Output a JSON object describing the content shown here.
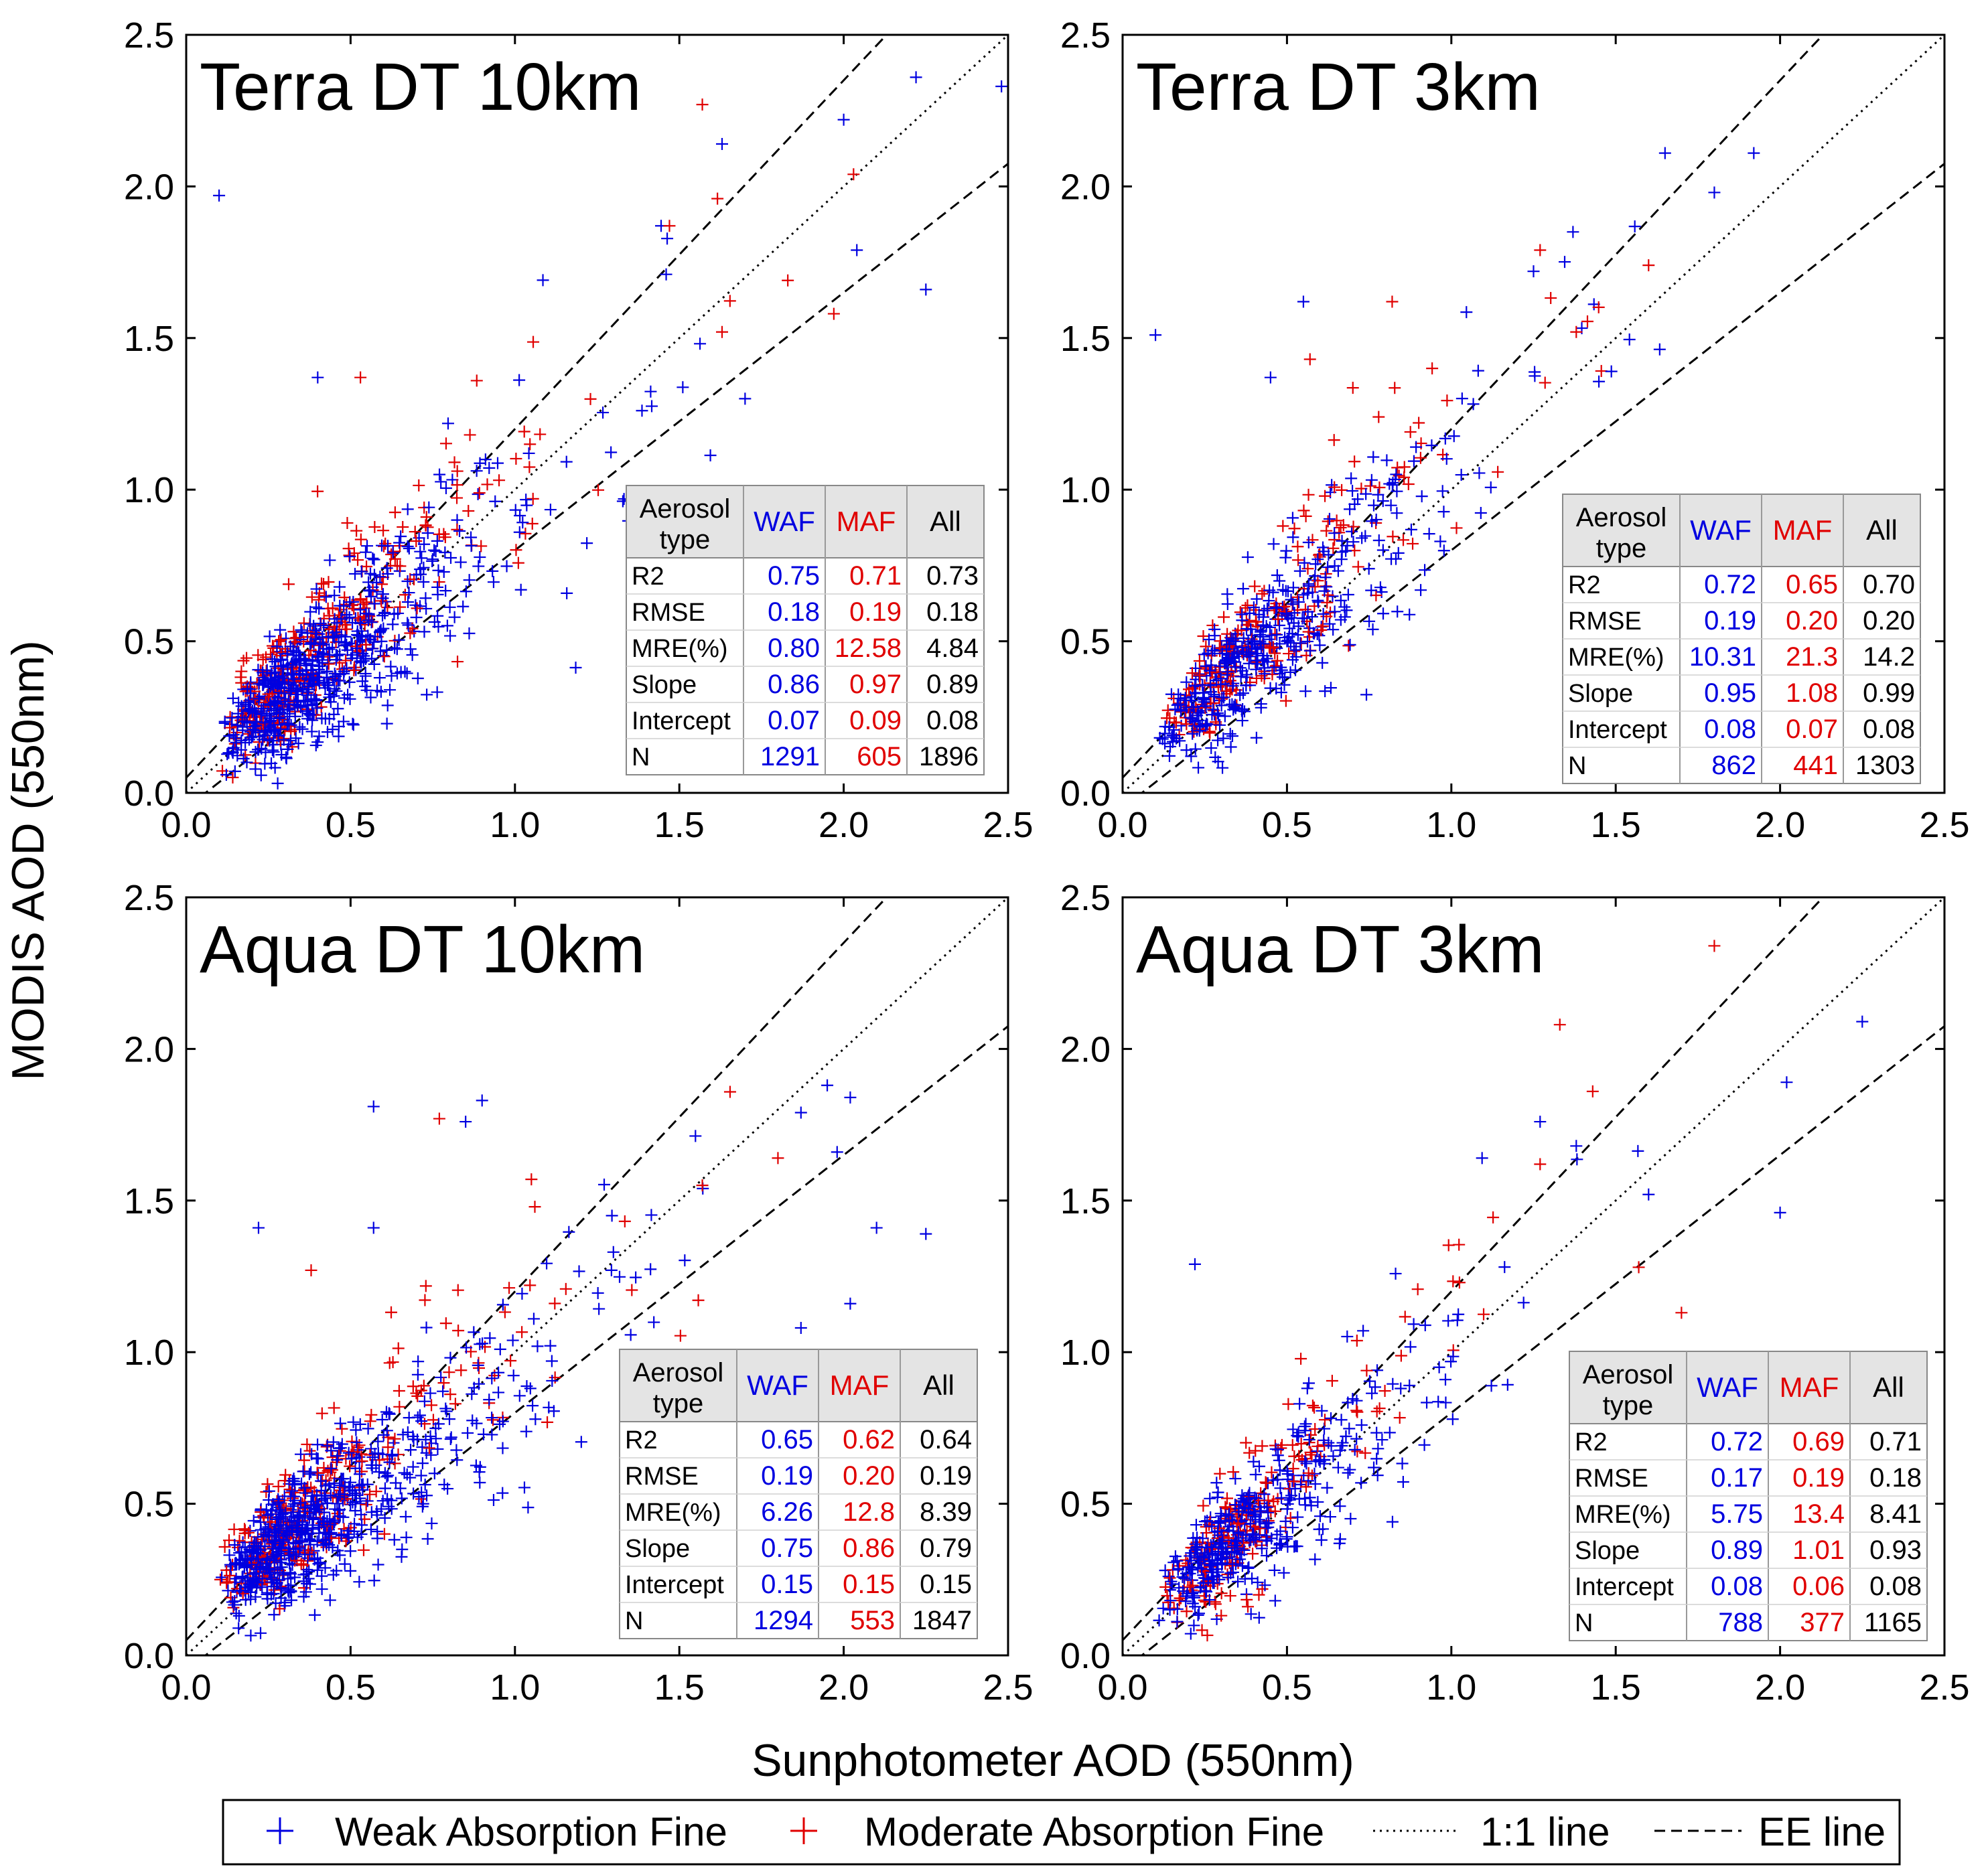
{
  "figure": {
    "ylabel": "MODIS  AOD (550nm)",
    "xlabel": "Sunphotometer AOD (550nm)",
    "legend": [
      {
        "key": "waf",
        "label": "Weak Absorption Fine",
        "marker": "plus",
        "color": "#0000e0"
      },
      {
        "key": "maf",
        "label": "Moderate Absorption Fine",
        "marker": "plus",
        "color": "#e00000"
      },
      {
        "key": "one",
        "label": "1:1 line",
        "marker": "dotted-line",
        "color": "#000000"
      },
      {
        "key": "ee",
        "label": "EE line",
        "marker": "dashed-line",
        "color": "#000000"
      }
    ],
    "colors": {
      "waf": "#0000e0",
      "maf": "#e00000",
      "axis": "#000000",
      "table_header": "#e4e4e4"
    },
    "table_header": [
      "Aerosol type",
      "WAF",
      "MAF",
      "All"
    ]
  },
  "chart_data": [
    {
      "type": "scatter",
      "title": "Terra DT 10km",
      "xlim": [
        0,
        2.5
      ],
      "ylim": [
        0,
        2.5
      ],
      "xticks": [
        "0.0",
        "0.5",
        "1.0",
        "1.5",
        "2.0",
        "2.5"
      ],
      "yticks": [
        "0.0",
        "0.5",
        "1.0",
        "1.5",
        "2.0",
        "2.5"
      ],
      "ee_lines": {
        "upper": {
          "slope": 1.15,
          "intercept": 0.05
        },
        "lower": {
          "slope": 0.85,
          "intercept": -0.05
        }
      },
      "stats": [
        [
          "R2",
          "0.75",
          "0.71",
          "0.73"
        ],
        [
          "RMSE",
          "0.18",
          "0.19",
          "0.18"
        ],
        [
          "MRE(%)",
          "0.80",
          "12.58",
          "4.84"
        ],
        [
          "Slope",
          "0.86",
          "0.97",
          "0.89"
        ],
        [
          "Intercept",
          "0.07",
          "0.09",
          "0.08"
        ],
        [
          "N",
          "1291",
          "605",
          "1896"
        ]
      ],
      "sim": {
        "waf_slope": 0.86,
        "waf_int": 0.07,
        "maf_slope": 0.97,
        "maf_int": 0.09,
        "n_waf": 650,
        "n_maf": 300,
        "seed": 11
      },
      "series": [
        {
          "name": "WAF outliers",
          "color": "#0000e0",
          "points": [
            [
              0.1,
              1.97
            ],
            [
              2.22,
              2.36
            ],
            [
              2.48,
              2.33
            ],
            [
              2.0,
              2.22
            ],
            [
              1.63,
              2.14
            ],
            [
              2.04,
              1.79
            ],
            [
              2.25,
              1.66
            ],
            [
              1.46,
              1.71
            ],
            [
              1.7,
              1.3
            ],
            [
              0.4,
              1.37
            ]
          ]
        },
        {
          "name": "MAF outliers",
          "color": "#e00000",
          "points": [
            [
              1.57,
              2.27
            ],
            [
              2.03,
              2.04
            ],
            [
              1.47,
              1.87
            ],
            [
              1.83,
              1.69
            ],
            [
              1.97,
              1.58
            ],
            [
              0.53,
              1.37
            ],
            [
              1.63,
              1.52
            ]
          ]
        }
      ]
    },
    {
      "type": "scatter",
      "title": "Terra DT 3km",
      "xlim": [
        0,
        2.5
      ],
      "ylim": [
        0,
        2.5
      ],
      "xticks": [
        "0.0",
        "0.5",
        "1.0",
        "1.5",
        "2.0",
        "2.5"
      ],
      "yticks": [
        "0.0",
        "0.5",
        "1.0",
        "1.5",
        "2.0",
        "2.5"
      ],
      "ee_lines": {
        "upper": {
          "slope": 1.15,
          "intercept": 0.05
        },
        "lower": {
          "slope": 0.85,
          "intercept": -0.05
        }
      },
      "stats": [
        [
          "R2",
          "0.72",
          "0.65",
          "0.70"
        ],
        [
          "RMSE",
          "0.19",
          "0.20",
          "0.20"
        ],
        [
          "MRE(%)",
          "10.31",
          "21.3",
          "14.2"
        ],
        [
          "Slope",
          "0.95",
          "1.08",
          "0.99"
        ],
        [
          "Intercept",
          "0.08",
          "0.07",
          "0.08"
        ],
        [
          "N",
          "862",
          "441",
          "1303"
        ]
      ],
      "sim": {
        "waf_slope": 0.95,
        "waf_int": 0.08,
        "maf_slope": 1.08,
        "maf_int": 0.07,
        "n_waf": 430,
        "n_maf": 220,
        "seed": 23
      },
      "series": [
        {
          "name": "WAF outliers",
          "color": "#0000e0",
          "points": [
            [
              0.1,
              1.51
            ],
            [
              0.55,
              1.62
            ],
            [
              1.65,
              2.11
            ],
            [
              1.92,
              2.11
            ],
            [
              1.8,
              1.98
            ],
            [
              1.37,
              1.85
            ],
            [
              0.45,
              1.37
            ],
            [
              1.25,
              1.72
            ]
          ]
        },
        {
          "name": "MAF outliers",
          "color": "#e00000",
          "points": [
            [
              1.27,
              1.79
            ],
            [
              1.6,
              1.74
            ],
            [
              1.38,
              1.52
            ],
            [
              0.82,
              1.62
            ],
            [
              0.57,
              1.43
            ]
          ]
        }
      ]
    },
    {
      "type": "scatter",
      "title": "Aqua DT 10km",
      "xlim": [
        0,
        2.5
      ],
      "ylim": [
        0,
        2.5
      ],
      "xticks": [
        "0.0",
        "0.5",
        "1.0",
        "1.5",
        "2.0",
        "2.5"
      ],
      "yticks": [
        "0.0",
        "0.5",
        "1.0",
        "1.5",
        "2.0",
        "2.5"
      ],
      "ee_lines": {
        "upper": {
          "slope": 1.15,
          "intercept": 0.05
        },
        "lower": {
          "slope": 0.85,
          "intercept": -0.05
        }
      },
      "stats": [
        [
          "R2",
          "0.65",
          "0.62",
          "0.64"
        ],
        [
          "RMSE",
          "0.19",
          "0.20",
          "0.19"
        ],
        [
          "MRE(%)",
          "6.26",
          "12.8",
          "8.39"
        ],
        [
          "Slope",
          "0.75",
          "0.86",
          "0.79"
        ],
        [
          "Intercept",
          "0.15",
          "0.15",
          "0.15"
        ],
        [
          "N",
          "1294",
          "553",
          "1847"
        ]
      ],
      "sim": {
        "waf_slope": 0.75,
        "waf_int": 0.15,
        "maf_slope": 0.86,
        "maf_int": 0.15,
        "n_waf": 650,
        "n_maf": 280,
        "seed": 37
      },
      "series": [
        {
          "name": "WAF outliers",
          "color": "#0000e0",
          "points": [
            [
              0.57,
              1.81
            ],
            [
              0.9,
              1.83
            ],
            [
              0.85,
              1.76
            ],
            [
              0.22,
              1.41
            ],
            [
              0.57,
              1.41
            ],
            [
              1.95,
              1.88
            ],
            [
              2.02,
              1.84
            ],
            [
              1.87,
              1.79
            ],
            [
              1.98,
              1.66
            ],
            [
              2.1,
              1.41
            ],
            [
              2.25,
              1.39
            ],
            [
              2.02,
              1.16
            ],
            [
              1.87,
              1.08
            ]
          ]
        },
        {
          "name": "MAF outliers",
          "color": "#e00000",
          "points": [
            [
              0.77,
              1.77
            ],
            [
              1.8,
              1.64
            ],
            [
              1.05,
              1.57
            ],
            [
              1.57,
              1.55
            ],
            [
              0.38,
              1.27
            ]
          ]
        }
      ]
    },
    {
      "type": "scatter",
      "title": "Aqua DT 3km",
      "xlim": [
        0,
        2.5
      ],
      "ylim": [
        0,
        2.5
      ],
      "xticks": [
        "0.0",
        "0.5",
        "1.0",
        "1.5",
        "2.0",
        "2.5"
      ],
      "yticks": [
        "0.0",
        "0.5",
        "1.0",
        "1.5",
        "2.0",
        "2.5"
      ],
      "ee_lines": {
        "upper": {
          "slope": 1.15,
          "intercept": 0.05
        },
        "lower": {
          "slope": 0.85,
          "intercept": -0.05
        }
      },
      "stats": [
        [
          "R2",
          "0.72",
          "0.69",
          "0.71"
        ],
        [
          "RMSE",
          "0.17",
          "0.19",
          "0.18"
        ],
        [
          "MRE(%)",
          "5.75",
          "13.4",
          "8.41"
        ],
        [
          "Slope",
          "0.89",
          "1.01",
          "0.93"
        ],
        [
          "Intercept",
          "0.08",
          "0.06",
          "0.08"
        ],
        [
          "N",
          "788",
          "377",
          "1165"
        ]
      ],
      "sim": {
        "waf_slope": 0.89,
        "waf_int": 0.08,
        "maf_slope": 1.01,
        "maf_int": 0.06,
        "n_waf": 400,
        "n_maf": 190,
        "seed": 53
      },
      "series": [
        {
          "name": "WAF outliers",
          "color": "#0000e0",
          "points": [
            [
              2.25,
              2.09
            ],
            [
              2.02,
              1.89
            ],
            [
              2.0,
              1.46
            ],
            [
              1.27,
              1.76
            ],
            [
              0.22,
              1.29
            ],
            [
              1.6,
              1.52
            ],
            [
              1.38,
              1.68
            ]
          ]
        },
        {
          "name": "MAF outliers",
          "color": "#e00000",
          "points": [
            [
              1.8,
              2.34
            ],
            [
              1.33,
              2.08
            ],
            [
              1.43,
              1.86
            ],
            [
              1.7,
              1.13
            ],
            [
              1.57,
              1.28
            ],
            [
              1.27,
              1.62
            ]
          ]
        }
      ]
    }
  ]
}
